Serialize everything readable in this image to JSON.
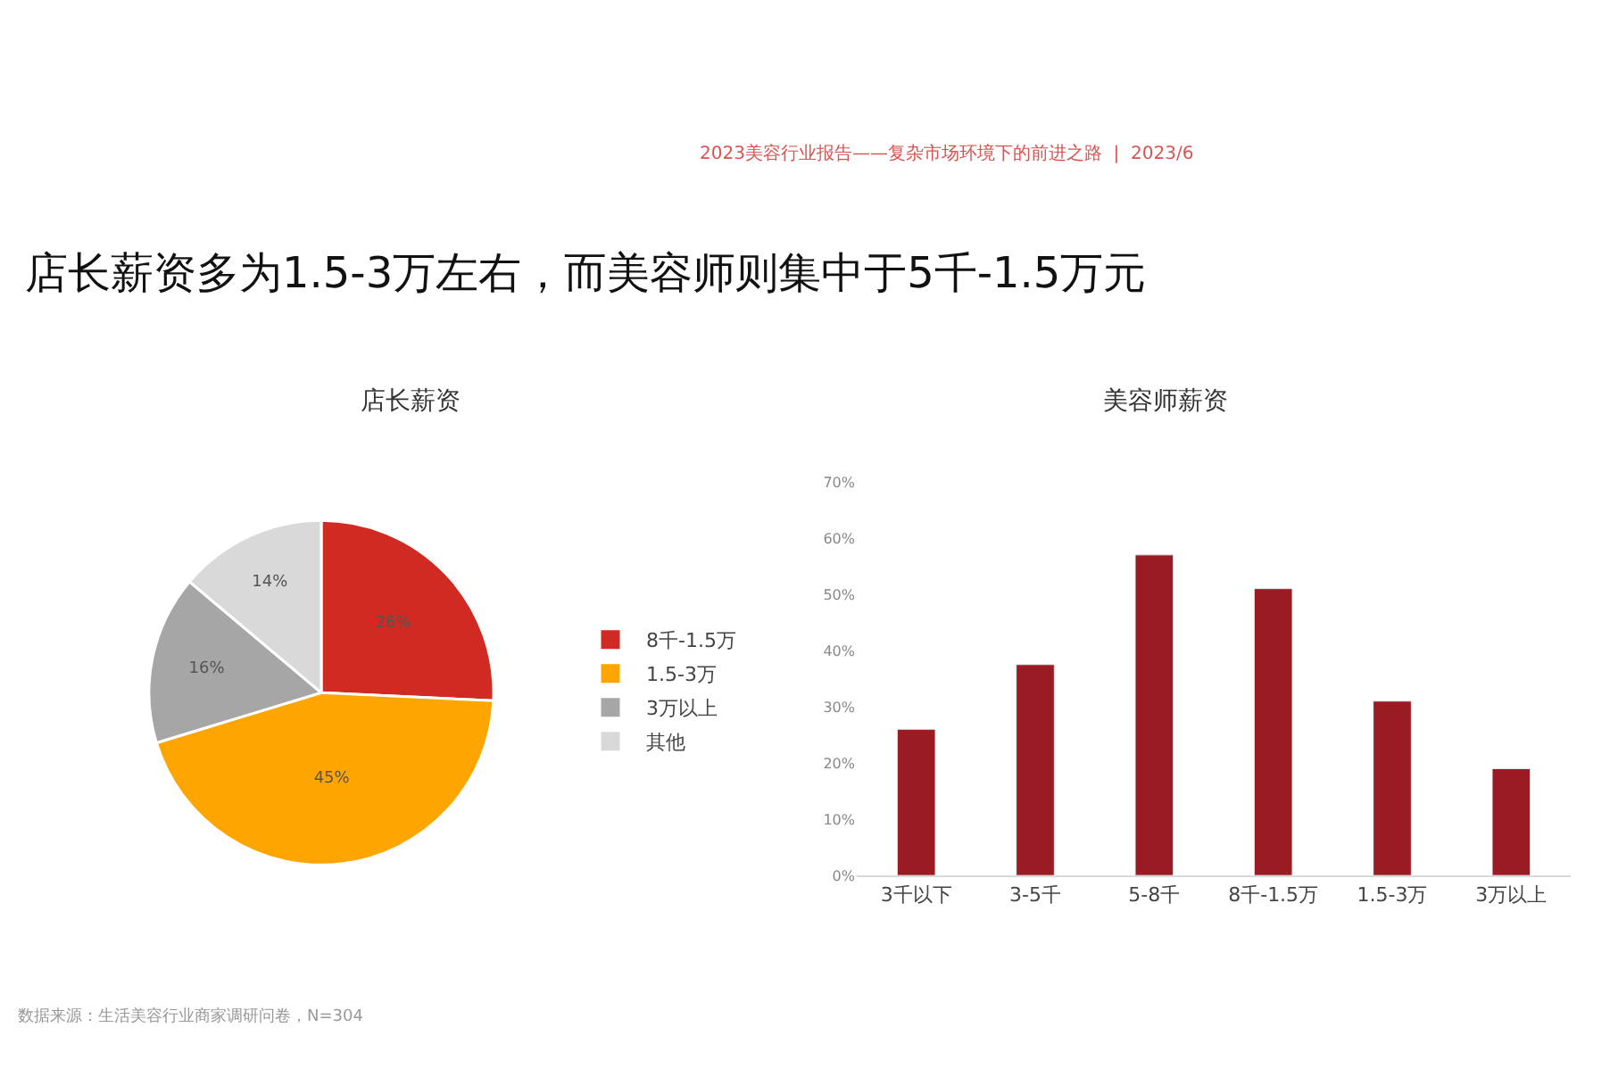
{
  "chart_data": [
    {
      "type": "pie",
      "title": "店长薪资",
      "categories": [
        "8千-1.5万",
        "1.5-3万",
        "3万以上",
        "其他"
      ],
      "values": [
        26,
        45,
        16,
        14
      ],
      "value_labels": [
        "26%",
        "45%",
        "16%",
        "14%"
      ],
      "colors": [
        "#d02a22",
        "#ffa500",
        "#a6a6a6",
        "#d9d9d9"
      ],
      "legend": "right",
      "annotations": [
        "2023美容行业报告——复杂市场环境下的前进之路  |  2023/6",
        "店长薪资多为1.5-3万左右，而美容师则集中于5千-1.5万元",
        "数据来源：生活美容行业商家调研问卷，N=304"
      ]
    },
    {
      "type": "bar",
      "title": "美容师薪资",
      "categories": [
        "3千以下",
        "3-5千",
        "5-8千",
        "8千-1.5万",
        "1.5-3万",
        "3万以上"
      ],
      "values": [
        26,
        37.5,
        57,
        51,
        31,
        19
      ],
      "color": "#9b1b22",
      "ylim": [
        0,
        70
      ],
      "yticks": [
        {
          "value": 0,
          "label": "0%"
        },
        {
          "value": 10,
          "label": "10%"
        },
        {
          "value": 20,
          "label": "20%"
        },
        {
          "value": 30,
          "label": "30%"
        },
        {
          "value": 40,
          "label": "40%"
        },
        {
          "value": 50,
          "label": "50%"
        },
        {
          "value": 60,
          "label": "60%"
        },
        {
          "value": 70,
          "label": "70%"
        }
      ]
    }
  ]
}
